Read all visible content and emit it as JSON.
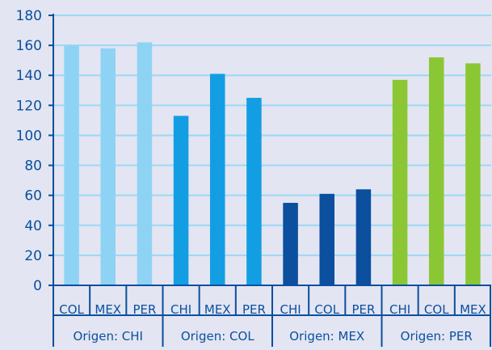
{
  "chart_data": {
    "type": "bar",
    "title": "",
    "xlabel": "",
    "ylabel": "",
    "ylim": [
      0,
      180
    ],
    "yticks": [
      0,
      20,
      40,
      60,
      80,
      100,
      120,
      140,
      160,
      180
    ],
    "grid": true,
    "legend": "none",
    "groups": [
      {
        "label": "Origen: CHI",
        "color": "#8fd3f4",
        "categories": [
          "COL",
          "MEX",
          "PER"
        ],
        "values": [
          160,
          158,
          162
        ]
      },
      {
        "label": "Origen: COL",
        "color": "#139ee3",
        "categories": [
          "CHI",
          "MEX",
          "PER"
        ],
        "values": [
          113,
          141,
          125
        ]
      },
      {
        "label": "Origen: MEX",
        "color": "#0b4f9e",
        "categories": [
          "CHI",
          "COL",
          "PER"
        ],
        "values": [
          55,
          61,
          64
        ]
      },
      {
        "label": "Origen: PER",
        "color": "#8bc734",
        "categories": [
          "CHI",
          "COL",
          "MEX"
        ],
        "values": [
          137,
          152,
          148
        ]
      }
    ]
  },
  "colors": {
    "background": "#e3e5f2",
    "grid": "#9ad9f5",
    "axis": "#0b4f9e",
    "label_text": "#0b4f9e"
  }
}
